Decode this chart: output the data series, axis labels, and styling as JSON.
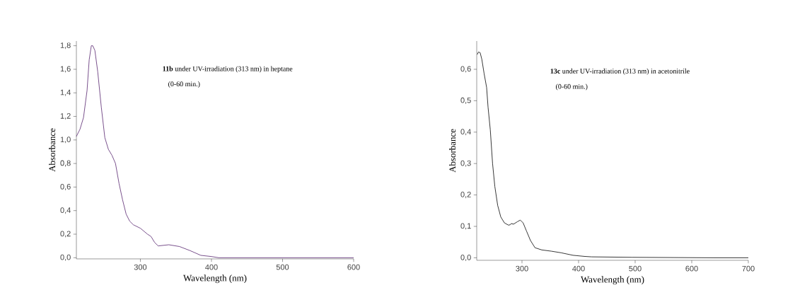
{
  "chart_data": [
    {
      "type": "line",
      "xlabel": "Wavelength (nm)",
      "ylabel": "Absorbance",
      "color": "#6a3d80",
      "annotations": [
        "**11b** under UV-irradiation (313 nm) in heptane",
        "(0-60 min.)"
      ],
      "x": [
        210,
        215,
        220,
        225,
        228,
        231,
        233,
        236,
        240,
        245,
        250,
        255,
        260,
        265,
        270,
        275,
        280,
        285,
        290,
        300,
        310,
        315,
        320,
        325,
        340,
        355,
        370,
        385,
        400,
        410,
        450,
        600
      ],
      "values": [
        1.03,
        1.09,
        1.19,
        1.42,
        1.68,
        1.8,
        1.8,
        1.76,
        1.58,
        1.28,
        1.02,
        0.92,
        0.87,
        0.8,
        0.63,
        0.49,
        0.37,
        0.31,
        0.28,
        0.25,
        0.2,
        0.18,
        0.13,
        0.1,
        0.11,
        0.095,
        0.06,
        0.02,
        0.01,
        0.0,
        0.0,
        0.0
      ],
      "xlim": [
        210,
        600
      ],
      "ylim": [
        -0.01,
        1.84
      ],
      "xticks": [
        300,
        400,
        500,
        600
      ],
      "yticks": [
        {
          "value": 0,
          "label": "0,0"
        },
        {
          "value": 0.2,
          "label": "0,2"
        },
        {
          "value": 0.4,
          "label": "0,4"
        },
        {
          "value": 0.6,
          "label": "0,6"
        },
        {
          "value": 0.8,
          "label": "0,8"
        },
        {
          "value": 1.0,
          "label": "1,0"
        },
        {
          "value": 1.2,
          "label": "1,2"
        },
        {
          "value": 1.4,
          "label": "1,4"
        },
        {
          "value": 1.6,
          "label": "1,6"
        },
        {
          "value": 1.8,
          "label": "1,8"
        }
      ]
    },
    {
      "type": "line",
      "xlabel": "Wavelength (nm)",
      "ylabel": "Absorbance",
      "color": "#222222",
      "annotations": [
        "**13c** under UV-irradiation (313 nm) in acetonitrile",
        "(0-60 min.)"
      ],
      "x": [
        221,
        223,
        226,
        229,
        233,
        237.5,
        240,
        244,
        248,
        252,
        257,
        262.5,
        269,
        276,
        279,
        281,
        285,
        292,
        297,
        302,
        308,
        315,
        323,
        335,
        352,
        369,
        390,
        410,
        423,
        494,
        640,
        700
      ],
      "values": [
        0.647,
        0.655,
        0.653,
        0.632,
        0.587,
        0.542,
        0.48,
        0.407,
        0.3,
        0.227,
        0.167,
        0.13,
        0.111,
        0.104,
        0.105,
        0.109,
        0.107,
        0.115,
        0.12,
        0.111,
        0.085,
        0.055,
        0.032,
        0.025,
        0.021,
        0.016,
        0.008,
        0.0045,
        0.003,
        0.0015,
        0.0,
        0.0
      ],
      "xlim": [
        220,
        700
      ],
      "ylim": [
        -0.008,
        0.69
      ],
      "xticks": [
        300,
        400,
        500,
        600,
        700
      ],
      "yticks": [
        {
          "value": 0,
          "label": "0,0"
        },
        {
          "value": 0.1,
          "label": "0,1"
        },
        {
          "value": 0.2,
          "label": "0,2"
        },
        {
          "value": 0.3,
          "label": "0,3"
        },
        {
          "value": 0.4,
          "label": "0,4"
        },
        {
          "value": 0.5,
          "label": "0,5"
        },
        {
          "value": 0.6,
          "label": "0,6"
        }
      ]
    }
  ]
}
